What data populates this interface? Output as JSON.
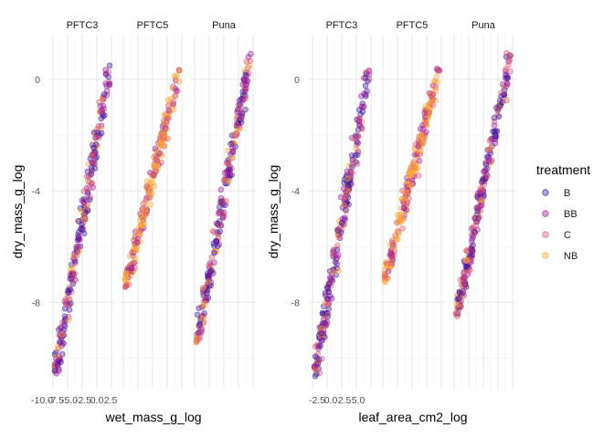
{
  "chart_data": [
    {
      "type": "scatter",
      "facets": [
        "PFTC3",
        "PFTC5",
        "Puna"
      ],
      "xlabel": "wet_mass_g_log",
      "ylabel": "dry_mass_g_log",
      "x_tick_labels": [
        "-10.0",
        "-7.5",
        "-5.0",
        "-2.5",
        "0.0",
        "2.5"
      ],
      "y_tick_labels": [
        "0",
        "-4",
        "-8"
      ],
      "ylim": [
        -11.1,
        1.6
      ],
      "series": [
        {
          "name": "B",
          "color": "#3b0f9e"
        },
        {
          "name": "BB",
          "color": "#9c179e"
        },
        {
          "name": "C",
          "color": "#d8576b"
        },
        {
          "name": "NB",
          "color": "#fca636"
        }
      ],
      "trend_by_facet": [
        {
          "facet": "PFTC3",
          "x_at_y_min": -8.5,
          "y_min": -10.6,
          "x_at_y_max": 0.3,
          "y_max": 0.4
        },
        {
          "facet": "PFTC5",
          "x_at_y_min": -6.0,
          "y_min": -7.5,
          "x_at_y_max": 0.6,
          "y_max": 0.4
        },
        {
          "facet": "Puna",
          "x_at_y_min": -7.0,
          "y_min": -9.5,
          "x_at_y_max": 1.0,
          "y_max": 1.0
        }
      ]
    },
    {
      "type": "scatter",
      "facets": [
        "PFTC3",
        "PFTC5",
        "Puna"
      ],
      "xlabel": "leaf_area_cm2_log",
      "ylabel": "dry_mass_g_log",
      "x_tick_labels": [
        "-2.5",
        "0.0",
        "2.5",
        "5.0"
      ],
      "y_tick_labels": [
        "0",
        "-4",
        "-8"
      ],
      "ylim": [
        -11.1,
        1.6
      ],
      "series": [
        {
          "name": "B",
          "color": "#3b0f9e"
        },
        {
          "name": "BB",
          "color": "#9c179e"
        },
        {
          "name": "C",
          "color": "#d8576b"
        },
        {
          "name": "NB",
          "color": "#fca636"
        }
      ],
      "trend_by_facet": [
        {
          "facet": "PFTC3",
          "x_at_y_min": -4.0,
          "y_min": -10.6,
          "x_at_y_max": 3.0,
          "y_max": 0.4
        },
        {
          "facet": "PFTC5",
          "x_at_y_min": -3.5,
          "y_min": -7.2,
          "x_at_y_max": 3.5,
          "y_max": 0.4
        },
        {
          "facet": "Puna",
          "x_at_y_min": -3.0,
          "y_min": -8.6,
          "x_at_y_max": 4.5,
          "y_max": 1.0
        }
      ]
    }
  ],
  "legend": {
    "title": "treatment",
    "items": [
      {
        "label": "B",
        "color": "#3b0f9e"
      },
      {
        "label": "BB",
        "color": "#9c179e"
      },
      {
        "label": "C",
        "color": "#d8576b"
      },
      {
        "label": "NB",
        "color": "#fca636"
      }
    ]
  }
}
